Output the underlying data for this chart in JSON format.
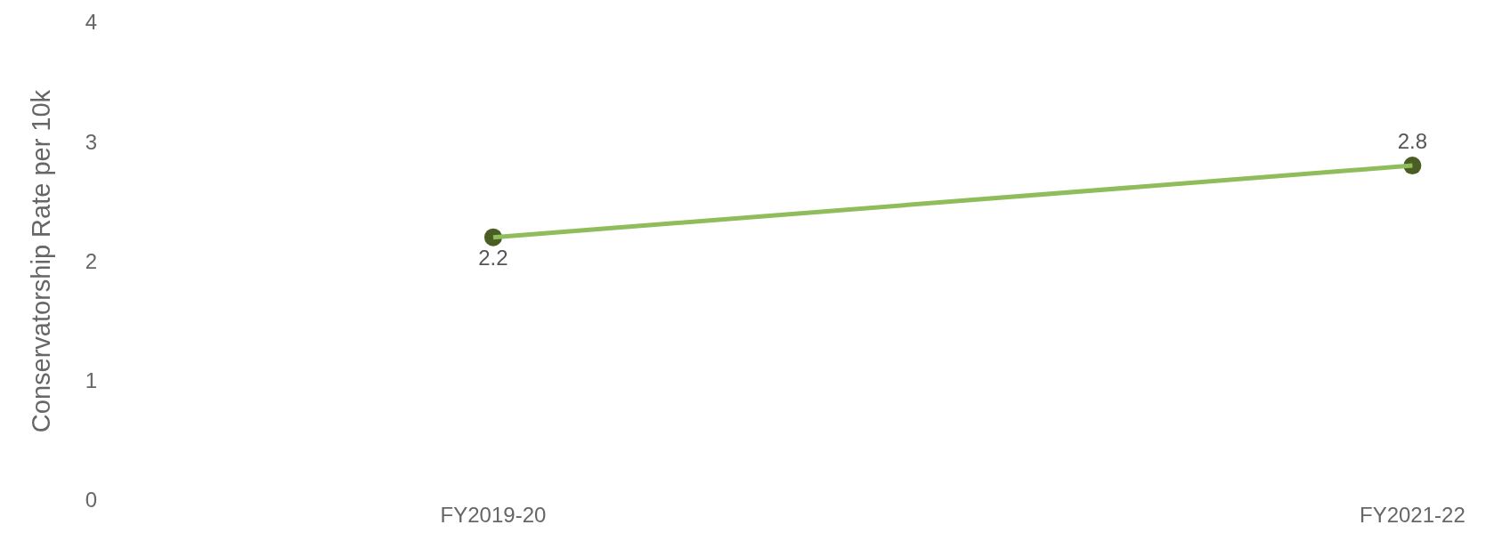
{
  "chart_data": {
    "type": "line",
    "ylabel": "Conservatorship Rate per 10k",
    "categories": [
      "FY2019-20",
      "FY2021-22"
    ],
    "series": [
      {
        "color": "#8fbd5c",
        "colors": [
          "#4a5d23",
          "#4a5d23"
        ],
        "values": [
          2.2,
          2.8
        ]
      }
    ],
    "ylim": [
      0,
      4
    ],
    "yticks": [
      0,
      1,
      2,
      3,
      4
    ],
    "legend": false,
    "marker": "circle",
    "line_style": "solid",
    "data_labels": true
  }
}
